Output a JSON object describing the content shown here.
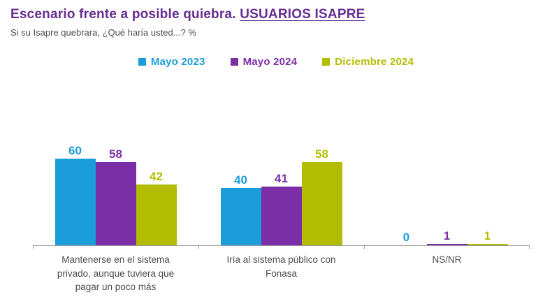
{
  "header": {
    "title_prefix": "Escenario frente a posible quiebra. ",
    "title_highlight": "USUARIOS ISAPRE",
    "subtitle": "Si su Isapre quebrara, ¿Qué haría usted...? %"
  },
  "colors": {
    "title": "#662D91",
    "subtitle": "#4D4D4D",
    "axis": "#9B9B9B",
    "category_label": "#4D4D4D",
    "background": "#FFFFFF"
  },
  "chart_data": {
    "type": "bar",
    "title": "Escenario frente a posible quiebra. USUARIOS ISAPRE",
    "subtitle": "Si su Isapre quebrara, ¿Qué haría usted...? %",
    "categories": [
      "Mantenerse en el sistema privado, aunque tuviera que pagar un poco más",
      "Iría al sistema público con Fonasa",
      "NS/NR"
    ],
    "series": [
      {
        "name": "Mayo 2023",
        "color": "#1B9DD9",
        "values": [
          60,
          40,
          0
        ]
      },
      {
        "name": "Mayo 2024",
        "color": "#7B2FA6",
        "values": [
          58,
          41,
          1
        ]
      },
      {
        "name": "Diciembre 2024",
        "color": "#B2BC00",
        "values": [
          42,
          58,
          1
        ]
      }
    ],
    "ylim": [
      0,
      65
    ],
    "value_labels": true,
    "legend_position": "top",
    "grid": false,
    "xlabel": "",
    "ylabel": ""
  }
}
